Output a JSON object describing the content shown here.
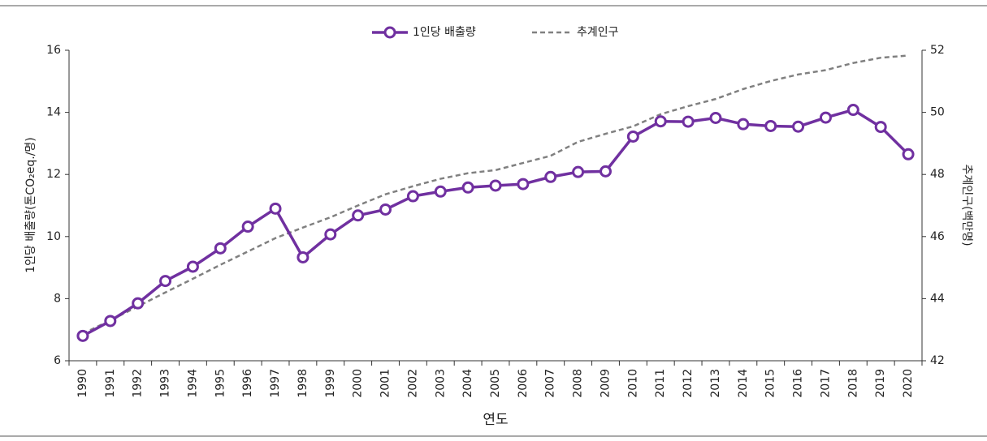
{
  "chart_data": {
    "type": "line",
    "categories": [
      "1990",
      "1991",
      "1992",
      "1993",
      "1994",
      "1995",
      "1996",
      "1997",
      "1998",
      "1999",
      "2000",
      "2001",
      "2002",
      "2003",
      "2004",
      "2005",
      "2006",
      "2007",
      "2008",
      "2009",
      "2010",
      "2011",
      "2012",
      "2013",
      "2014",
      "2015",
      "2016",
      "2017",
      "2018",
      "2019",
      "2020"
    ],
    "series": [
      {
        "name": "1인당 배출량",
        "color": "#7030a0",
        "values": [
          6.8,
          7.28,
          7.85,
          8.57,
          9.03,
          9.62,
          10.32,
          10.9,
          9.33,
          10.07,
          10.68,
          10.87,
          11.3,
          11.45,
          11.58,
          11.64,
          11.69,
          11.92,
          12.08,
          12.1,
          13.22,
          13.71,
          13.7,
          13.82,
          13.62,
          13.56,
          13.54,
          13.83,
          14.08,
          13.53,
          12.65
        ]
      },
      {
        "name": "추계인구",
        "color": "#808080",
        "axis": "y2",
        "values": [
          42.87,
          43.3,
          43.75,
          44.2,
          44.64,
          45.09,
          45.52,
          45.95,
          46.29,
          46.62,
          47.0,
          47.36,
          47.62,
          47.86,
          48.04,
          48.14,
          48.37,
          48.6,
          49.05,
          49.31,
          49.55,
          49.94,
          50.2,
          50.43,
          50.75,
          51.01,
          51.22,
          51.36,
          51.59,
          51.76,
          51.83
        ]
      }
    ],
    "xlabel": "연도",
    "ylabel": "1인당 배출량(톤CO₂eq./명)",
    "y2label": "추계인구(백만명)",
    "ylim": [
      6,
      16
    ],
    "yticks": [
      6,
      8,
      10,
      12,
      14,
      16
    ],
    "y2lim": [
      42,
      52
    ],
    "y2ticks": [
      42,
      44,
      46,
      48,
      50,
      52
    ],
    "legend": "top"
  }
}
